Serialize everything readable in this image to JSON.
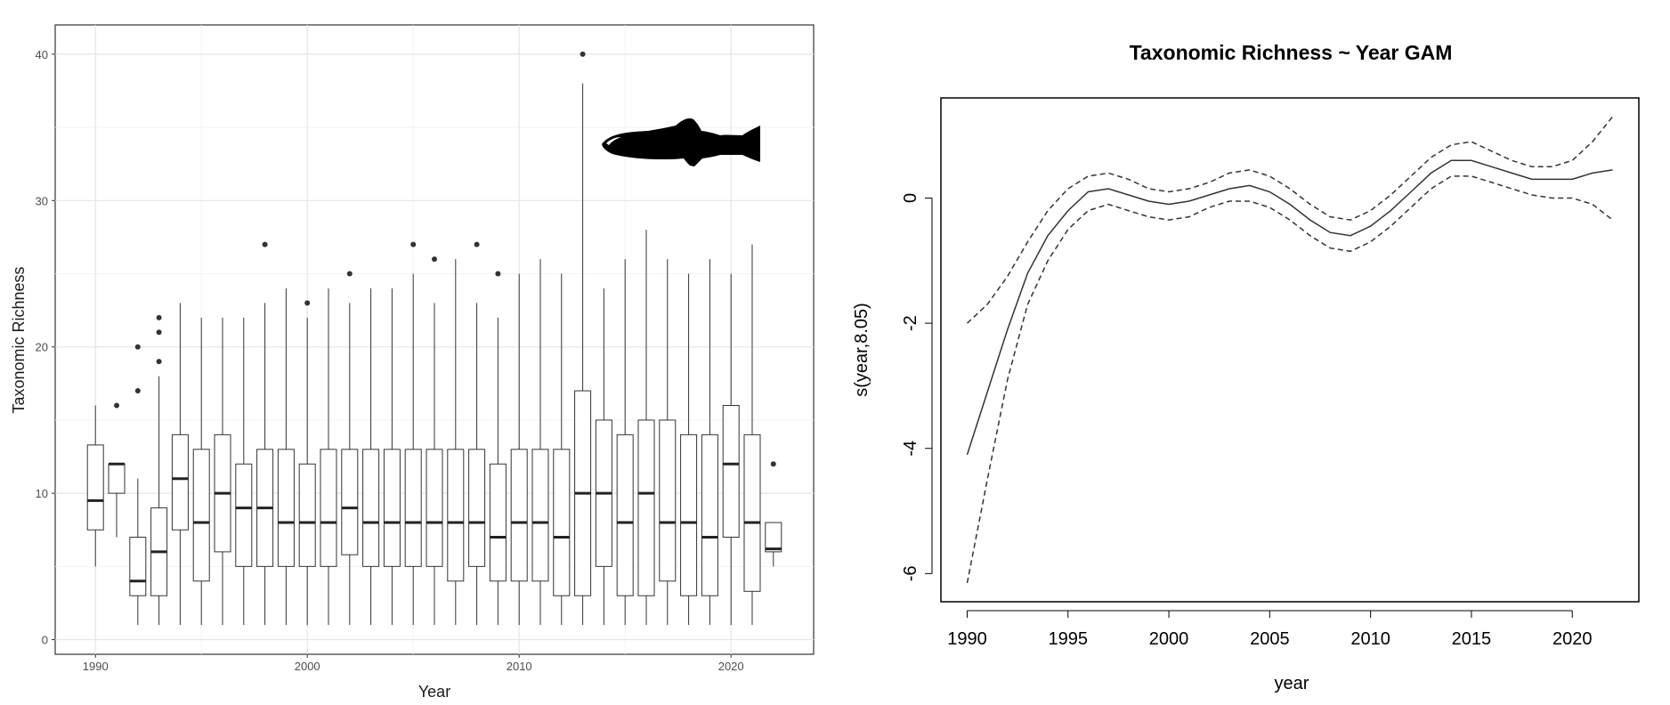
{
  "chart_data": [
    {
      "type": "box",
      "title": "",
      "xlabel": "Year",
      "ylabel": "Taxonomic Richness",
      "xlim": [
        1988.1,
        2023.9
      ],
      "ylim": [
        -1,
        42
      ],
      "xticks": [
        1990,
        2000,
        2010,
        2020
      ],
      "yticks": [
        0,
        10,
        20,
        30,
        40
      ],
      "grid": true,
      "boxes": [
        {
          "year": 1990,
          "min": 5,
          "q1": 7.5,
          "median": 9.5,
          "q3": 13.3,
          "max": 16,
          "outliers": []
        },
        {
          "year": 1991,
          "min": 7,
          "q1": 10,
          "median": 12,
          "q3": 12,
          "max": 12,
          "outliers": [
            16
          ]
        },
        {
          "year": 1992,
          "min": 1,
          "q1": 3,
          "median": 4,
          "q3": 7,
          "max": 11,
          "outliers": [
            17,
            20
          ]
        },
        {
          "year": 1993,
          "min": 1,
          "q1": 3,
          "median": 6,
          "q3": 9,
          "max": 18,
          "outliers": [
            19,
            21,
            22
          ]
        },
        {
          "year": 1994,
          "min": 1,
          "q1": 7.5,
          "median": 11,
          "q3": 14,
          "max": 23,
          "outliers": []
        },
        {
          "year": 1995,
          "min": 1,
          "q1": 4,
          "median": 8,
          "q3": 13,
          "max": 22,
          "outliers": []
        },
        {
          "year": 1996,
          "min": 1,
          "q1": 6,
          "median": 10,
          "q3": 14,
          "max": 22,
          "outliers": []
        },
        {
          "year": 1997,
          "min": 1,
          "q1": 5,
          "median": 9,
          "q3": 12,
          "max": 22,
          "outliers": []
        },
        {
          "year": 1998,
          "min": 1,
          "q1": 5,
          "median": 9,
          "q3": 13,
          "max": 23,
          "outliers": [
            27
          ]
        },
        {
          "year": 1999,
          "min": 1,
          "q1": 5,
          "median": 8,
          "q3": 13,
          "max": 24,
          "outliers": []
        },
        {
          "year": 2000,
          "min": 1,
          "q1": 5,
          "median": 8,
          "q3": 12,
          "max": 22,
          "outliers": [
            23
          ]
        },
        {
          "year": 2001,
          "min": 1,
          "q1": 5,
          "median": 8,
          "q3": 13,
          "max": 24,
          "outliers": []
        },
        {
          "year": 2002,
          "min": 1,
          "q1": 5.8,
          "median": 9,
          "q3": 13,
          "max": 23,
          "outliers": [
            25
          ]
        },
        {
          "year": 2003,
          "min": 1,
          "q1": 5,
          "median": 8,
          "q3": 13,
          "max": 24,
          "outliers": []
        },
        {
          "year": 2004,
          "min": 1,
          "q1": 5,
          "median": 8,
          "q3": 13,
          "max": 24,
          "outliers": []
        },
        {
          "year": 2005,
          "min": 1,
          "q1": 5,
          "median": 8,
          "q3": 13,
          "max": 25,
          "outliers": [
            27
          ]
        },
        {
          "year": 2006,
          "min": 1,
          "q1": 5,
          "median": 8,
          "q3": 13,
          "max": 23,
          "outliers": [
            26
          ]
        },
        {
          "year": 2007,
          "min": 1,
          "q1": 4,
          "median": 8,
          "q3": 13,
          "max": 26,
          "outliers": []
        },
        {
          "year": 2008,
          "min": 1,
          "q1": 5,
          "median": 8,
          "q3": 13,
          "max": 23,
          "outliers": [
            27
          ]
        },
        {
          "year": 2009,
          "min": 1,
          "q1": 4,
          "median": 7,
          "q3": 12,
          "max": 22,
          "outliers": [
            25
          ]
        },
        {
          "year": 2010,
          "min": 1,
          "q1": 4,
          "median": 8,
          "q3": 13,
          "max": 25,
          "outliers": []
        },
        {
          "year": 2011,
          "min": 1,
          "q1": 4,
          "median": 8,
          "q3": 13,
          "max": 26,
          "outliers": []
        },
        {
          "year": 2012,
          "min": 1,
          "q1": 3,
          "median": 7,
          "q3": 13,
          "max": 25,
          "outliers": []
        },
        {
          "year": 2013,
          "min": 1,
          "q1": 3,
          "median": 10,
          "q3": 17,
          "max": 38,
          "outliers": [
            40
          ]
        },
        {
          "year": 2014,
          "min": 1,
          "q1": 5,
          "median": 10,
          "q3": 15,
          "max": 24,
          "outliers": []
        },
        {
          "year": 2015,
          "min": 1,
          "q1": 3,
          "median": 8,
          "q3": 14,
          "max": 26,
          "outliers": []
        },
        {
          "year": 2016,
          "min": 1,
          "q1": 3,
          "median": 10,
          "q3": 15,
          "max": 28,
          "outliers": []
        },
        {
          "year": 2017,
          "min": 1,
          "q1": 4,
          "median": 8,
          "q3": 15,
          "max": 26,
          "outliers": []
        },
        {
          "year": 2018,
          "min": 1,
          "q1": 3,
          "median": 8,
          "q3": 14,
          "max": 25,
          "outliers": []
        },
        {
          "year": 2019,
          "min": 1,
          "q1": 3,
          "median": 7,
          "q3": 14,
          "max": 26,
          "outliers": []
        },
        {
          "year": 2020,
          "min": 1,
          "q1": 7,
          "median": 12,
          "q3": 16,
          "max": 25,
          "outliers": []
        },
        {
          "year": 2021,
          "min": 1,
          "q1": 3.3,
          "median": 8,
          "q3": 14,
          "max": 27,
          "outliers": []
        },
        {
          "year": 2022,
          "min": 5,
          "q1": 6,
          "median": 6.2,
          "q3": 8,
          "max": 8,
          "outliers": [
            12
          ]
        }
      ],
      "image": "fish-silhouette-icon"
    },
    {
      "type": "line",
      "title": "Taxonomic Richness ~ Year GAM",
      "xlabel": "year",
      "ylabel": "s(year,8.05)",
      "xlim": [
        1988.7,
        2023.3
      ],
      "ylim": [
        -6.45,
        1.6
      ],
      "xticks": [
        1990,
        1995,
        2000,
        2005,
        2010,
        2015,
        2020
      ],
      "yticks": [
        -6,
        -4,
        -2,
        0
      ],
      "grid": false,
      "x": [
        1990,
        1991,
        1992,
        1993,
        1994,
        1995,
        1996,
        1997,
        1998,
        1999,
        2000,
        2001,
        2002,
        2003,
        2004,
        2005,
        2006,
        2007,
        2008,
        2009,
        2010,
        2011,
        2012,
        2013,
        2014,
        2015,
        2016,
        2017,
        2018,
        2019,
        2020,
        2021,
        2022
      ],
      "series": [
        {
          "style": "solid",
          "values": [
            -4.1,
            -3.1,
            -2.1,
            -1.2,
            -0.6,
            -0.2,
            0.1,
            0.15,
            0.05,
            -0.05,
            -0.1,
            -0.05,
            0.05,
            0.15,
            0.2,
            0.1,
            -0.1,
            -0.35,
            -0.55,
            -0.6,
            -0.45,
            -0.2,
            0.1,
            0.4,
            0.6,
            0.6,
            0.5,
            0.4,
            0.3,
            0.3,
            0.3,
            0.4,
            0.45
          ]
        },
        {
          "style": "dashed",
          "values": [
            -2.0,
            -1.7,
            -1.25,
            -0.7,
            -0.2,
            0.15,
            0.35,
            0.4,
            0.3,
            0.15,
            0.1,
            0.15,
            0.25,
            0.4,
            0.45,
            0.35,
            0.15,
            -0.1,
            -0.3,
            -0.35,
            -0.2,
            0.05,
            0.35,
            0.65,
            0.85,
            0.9,
            0.75,
            0.6,
            0.5,
            0.5,
            0.6,
            0.9,
            1.3
          ]
        },
        {
          "style": "dashed",
          "values": [
            -6.15,
            -4.5,
            -2.9,
            -1.7,
            -1.0,
            -0.5,
            -0.2,
            -0.1,
            -0.2,
            -0.3,
            -0.35,
            -0.3,
            -0.15,
            -0.05,
            -0.05,
            -0.15,
            -0.35,
            -0.6,
            -0.8,
            -0.85,
            -0.7,
            -0.45,
            -0.15,
            0.15,
            0.35,
            0.35,
            0.25,
            0.15,
            0.05,
            0.0,
            0.0,
            -0.1,
            -0.35
          ]
        }
      ]
    }
  ]
}
